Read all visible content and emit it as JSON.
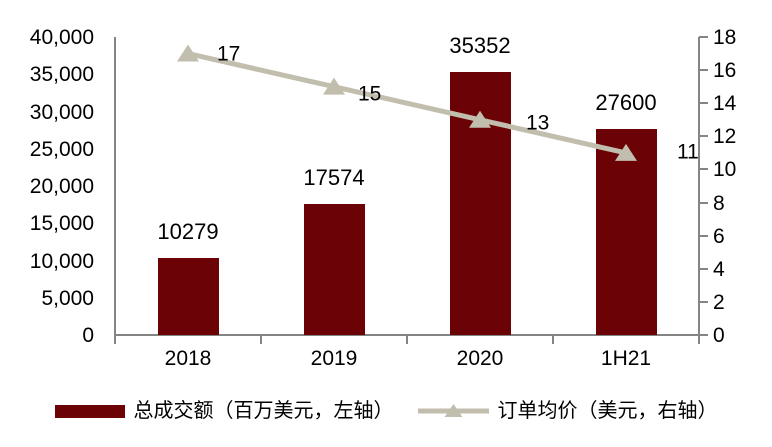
{
  "chart_data": {
    "type": "bar",
    "subtype": "bar-line-combo",
    "categories": [
      "2018",
      "2019",
      "2020",
      "1H21"
    ],
    "series": [
      {
        "name": "总成交额（百万美元，左轴）",
        "type": "bar",
        "axis": "left",
        "values": [
          10279,
          17574,
          35352,
          27600
        ],
        "data_labels": [
          "10279",
          "17574",
          "35352",
          "27600"
        ],
        "color": "#6b0205"
      },
      {
        "name": "订单均价（美元，右轴）",
        "type": "line",
        "axis": "right",
        "marker": "triangle",
        "values": [
          17,
          15,
          13,
          11
        ],
        "data_labels": [
          "17",
          "15",
          "13",
          "11"
        ],
        "color": "#c2beae"
      }
    ],
    "left_axis": {
      "min": 0,
      "max": 40000,
      "step": 5000,
      "tick_labels": [
        "40,000",
        "35,000",
        "30,000",
        "25,000",
        "20,000",
        "15,000",
        "10,000",
        "5,000",
        "0"
      ]
    },
    "right_axis": {
      "min": 0,
      "max": 18,
      "step": 2,
      "tick_labels": [
        "18",
        "16",
        "14",
        "12",
        "10",
        "8",
        "6",
        "4",
        "2",
        "0"
      ]
    },
    "title": "",
    "xlabel": "",
    "ylabel": "",
    "grid": false,
    "legend_position": "bottom",
    "background_color": "#ffffff",
    "axis_color": "#848484",
    "text_color": "#000000"
  }
}
